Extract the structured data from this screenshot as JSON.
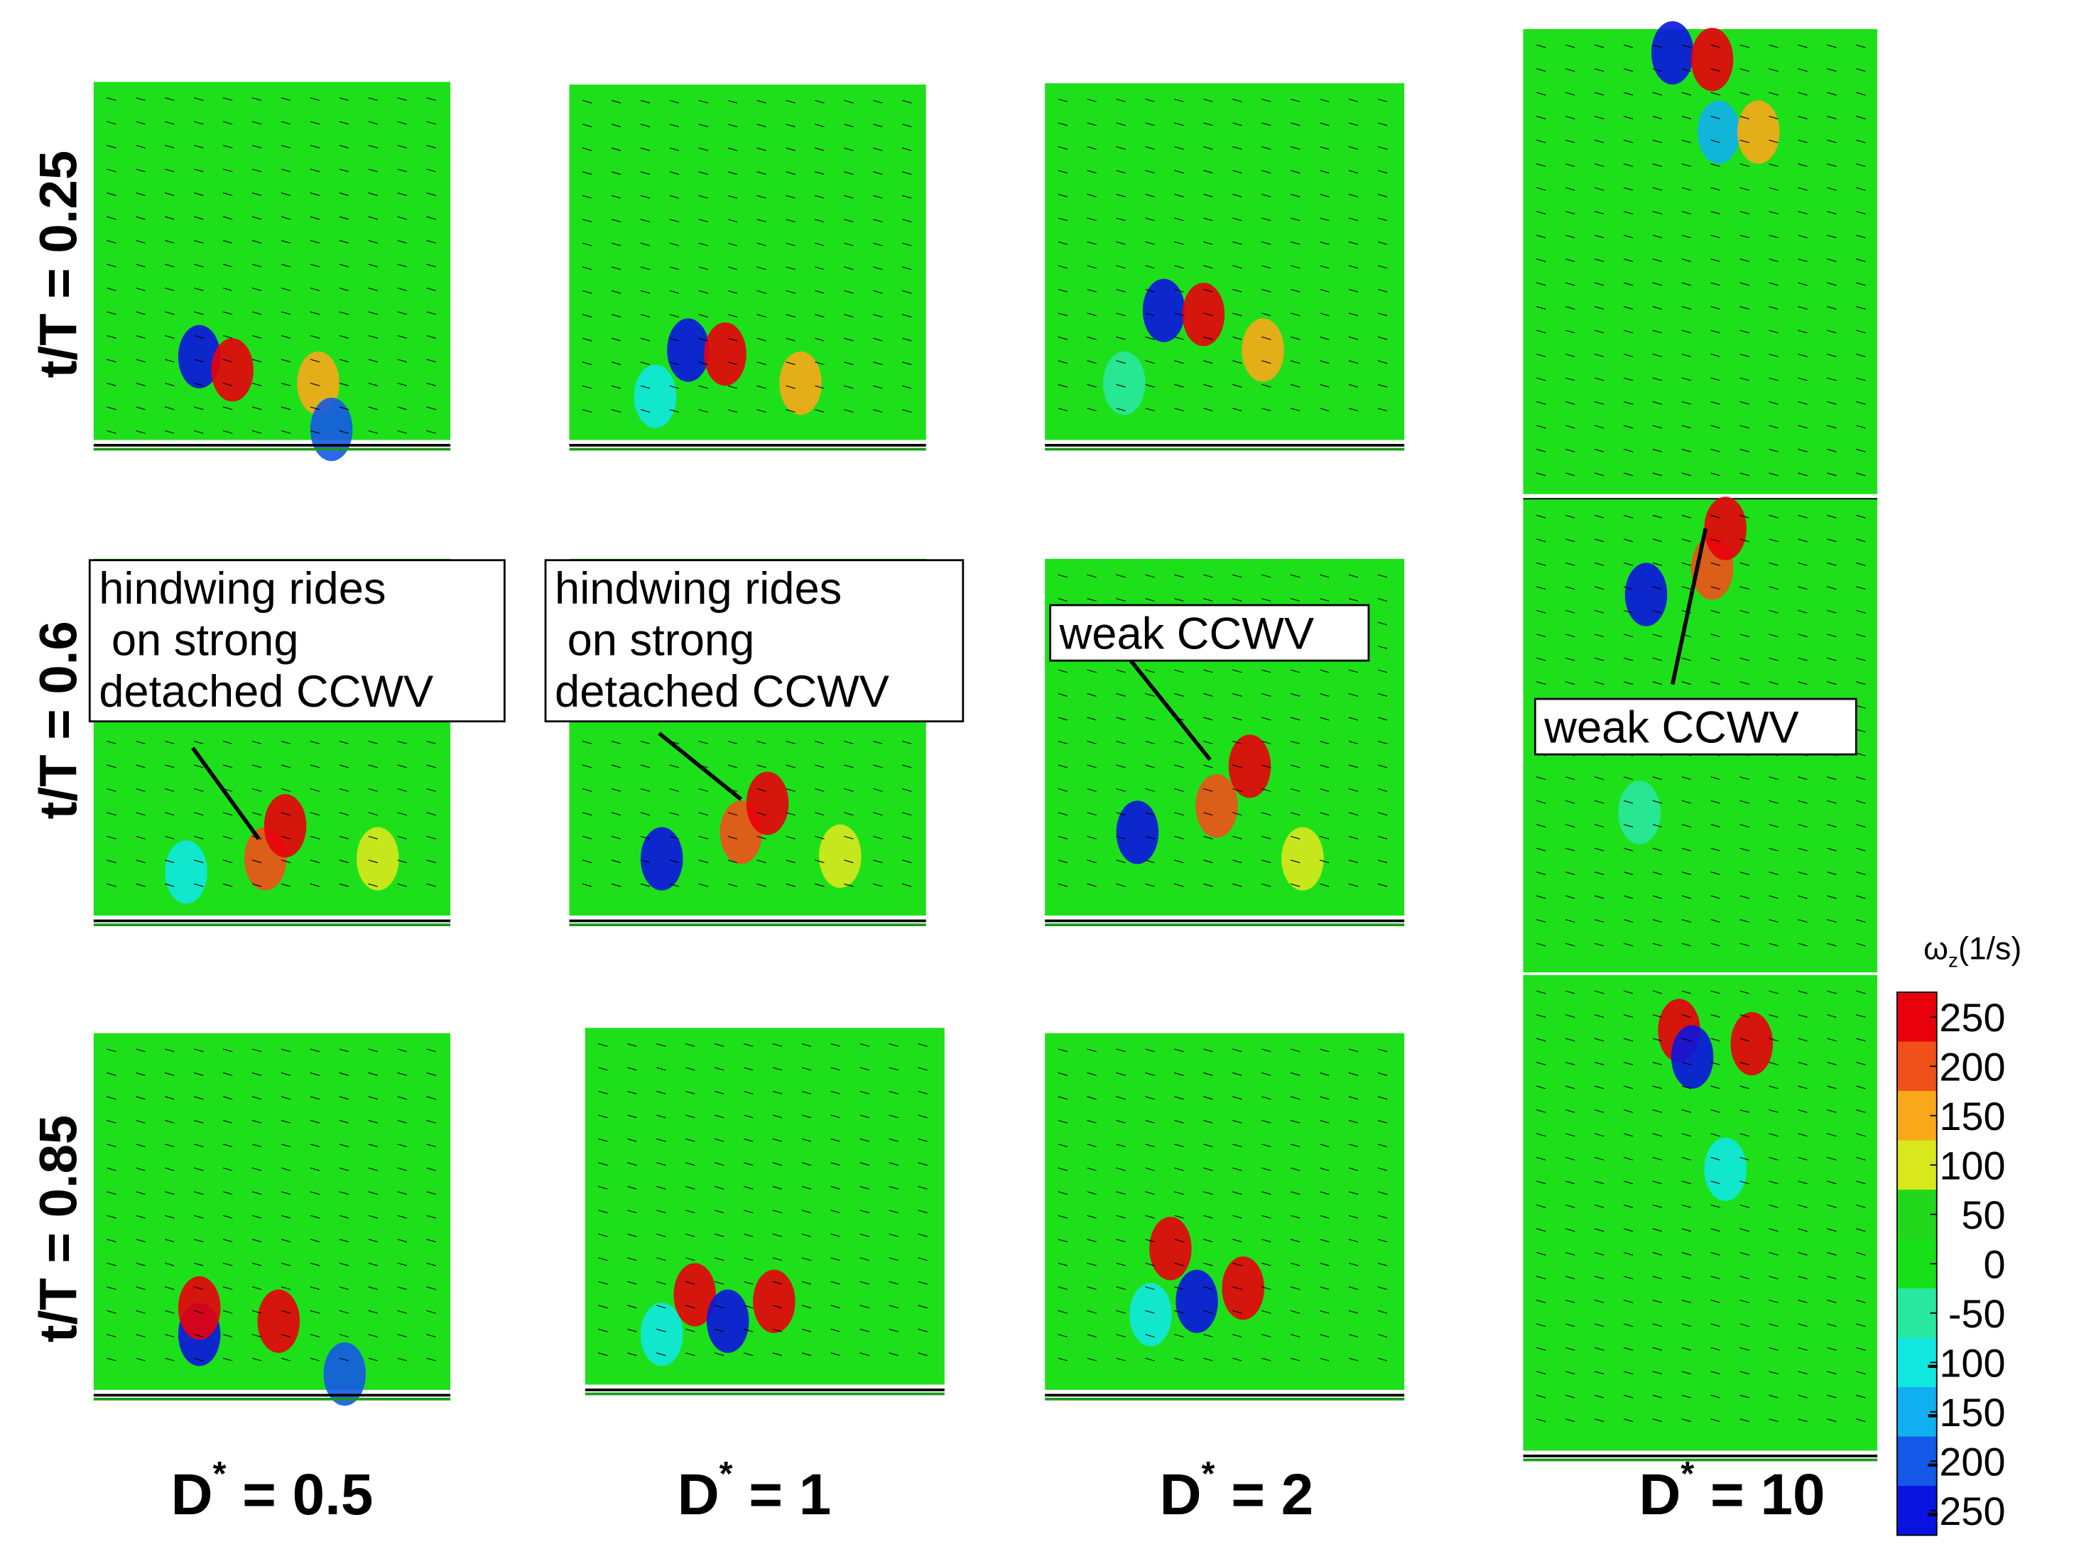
{
  "row_labels": [
    "t/T = 0.25",
    "t/T = 0.6",
    "t/T = 0.85"
  ],
  "column_labels": [
    {
      "main": "D",
      "sup": "*",
      "rest": "= 0.5"
    },
    {
      "main": "D",
      "sup": "*",
      "rest": "= 1"
    },
    {
      "main": "D",
      "sup": "*",
      "rest": "= 2"
    },
    {
      "main": "D",
      "sup": "*",
      "rest": "= 10"
    }
  ],
  "annotations": [
    {
      "lines": [
        "hindwing rides",
        " on strong",
        "detached CCWV"
      ]
    },
    {
      "lines": [
        "hindwing rides",
        " on strong",
        "detached CCWV"
      ]
    },
    {
      "lines": [
        "weak CCWV"
      ]
    },
    {
      "lines": [
        "weak CCWV"
      ]
    }
  ],
  "colorbar": {
    "title_symbol": "ω",
    "title_sub": "z",
    "title_unit": "(1/s)",
    "lim": [
      -275,
      275
    ],
    "ticks": [
      250,
      200,
      150,
      100,
      50,
      0,
      -50,
      -100,
      -150,
      -200,
      -250
    ],
    "colors": [
      "#e8000b",
      "#f0501a",
      "#f8a818",
      "#d8e81c",
      "#22d81c",
      "#18e018",
      "#28e8a0",
      "#10e8e0",
      "#10b0f0",
      "#1458e8",
      "#0a14e0"
    ]
  }
}
